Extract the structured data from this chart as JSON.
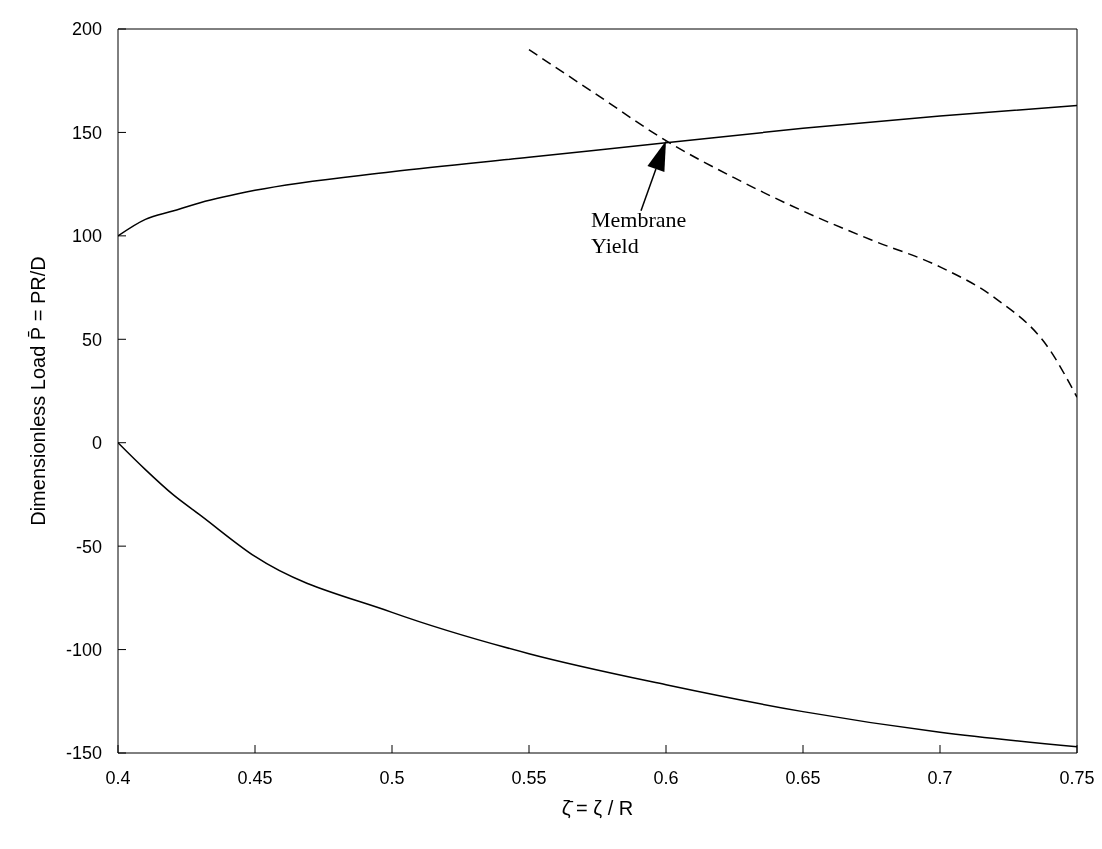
{
  "chart_data": {
    "type": "line",
    "xlabel": "ζ̄ = ζ / R",
    "ylabel": "Dimensionless Load P̄ = PR/D",
    "xlim": [
      0.4,
      0.75
    ],
    "xticks": [
      0.4,
      0.45,
      0.5,
      0.55,
      0.6,
      0.65,
      0.7,
      0.75
    ],
    "ylim": [
      -150,
      200
    ],
    "yticks": [
      -150,
      -100,
      -50,
      0,
      50,
      100,
      150,
      200
    ],
    "marker": "none",
    "series": [
      {
        "color": "#000000",
        "line_style": "solid",
        "x": [
          0.4,
          0.41,
          0.42,
          0.43,
          0.45,
          0.5,
          0.55,
          0.6,
          0.65,
          0.7,
          0.75
        ],
        "values": [
          100,
          108,
          112,
          116,
          122,
          131,
          138,
          145,
          152,
          158,
          163
        ]
      },
      {
        "color": "#000000",
        "line_style": "solid",
        "x": [
          0.4,
          0.41,
          0.42,
          0.43,
          0.45,
          0.5,
          0.55,
          0.6,
          0.65,
          0.7,
          0.75
        ],
        "values": [
          0,
          -13,
          -25,
          -35,
          -55,
          -82,
          -102,
          -117,
          -130,
          -140,
          -147
        ]
      },
      {
        "color": "#000000",
        "line_style": "dashed",
        "x": [
          0.55,
          0.575,
          0.6,
          0.625,
          0.65,
          0.675,
          0.7,
          0.72,
          0.74,
          0.75
        ],
        "values": [
          190,
          168,
          146,
          128,
          112,
          98,
          85,
          70,
          45,
          22
        ]
      }
    ],
    "annotations": [
      {
        "text": "Membrane\nYield",
        "x": 0.6,
        "y": 146
      }
    ]
  }
}
